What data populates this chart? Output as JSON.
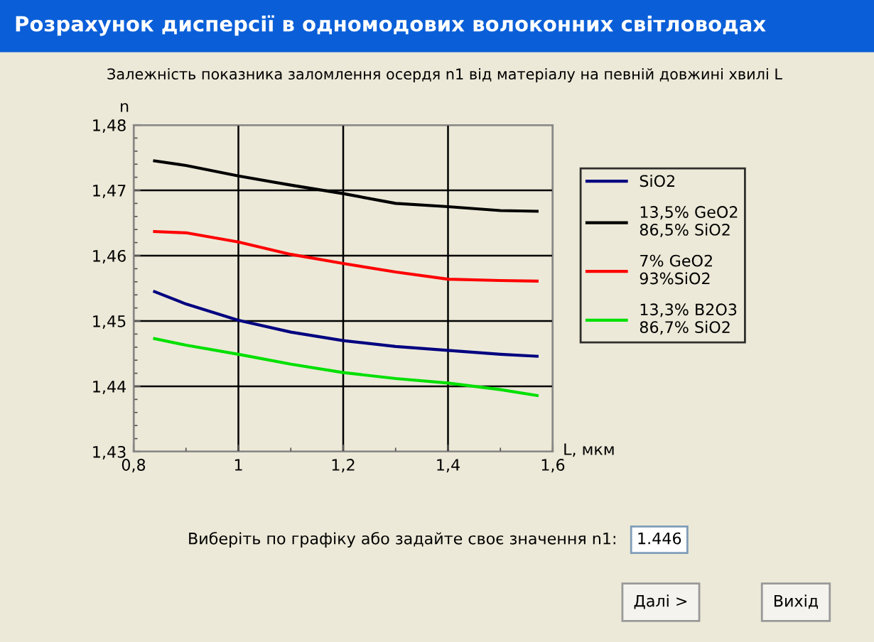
{
  "chart_data": {
    "type": "line",
    "title": "Розрахунок дисперсії в одномодових волоконних світловодах",
    "subtitle": "Залежність показника заломлення осердя n1 від матеріалу на певній довжині хвилі L",
    "xlabel": "L, мкм",
    "ylabel": "n",
    "x": [
      0.84,
      0.9,
      1.0,
      1.1,
      1.2,
      1.3,
      1.4,
      1.5,
      1.57
    ],
    "series": [
      {
        "name": "SiO2",
        "color": "#000080",
        "values": [
          1.4545,
          1.4526,
          1.4501,
          1.4483,
          1.447,
          1.4461,
          1.4455,
          1.4449,
          1.4446
        ]
      },
      {
        "name": "13,5% GeO2\n86,5% SiO2",
        "color": "#000000",
        "values": [
          1.4745,
          1.4738,
          1.4722,
          1.4708,
          1.4695,
          1.468,
          1.4675,
          1.4669,
          1.4668
        ]
      },
      {
        "name": "7% GeO2\n93%SiO2",
        "color": "#ff0000",
        "values": [
          1.4637,
          1.4635,
          1.4621,
          1.4602,
          1.4588,
          1.4575,
          1.4564,
          1.4562,
          1.4561
        ]
      },
      {
        "name": "13,3% B2O3\n86,7% SiO2",
        "color": "#00e000",
        "values": [
          1.4473,
          1.4463,
          1.4449,
          1.4434,
          1.4421,
          1.4412,
          1.4405,
          1.4395,
          1.4386
        ]
      }
    ],
    "xlim": [
      0.8,
      1.6
    ],
    "xticks": [
      {
        "value": 0.8,
        "label": "0,8"
      },
      1,
      {
        "value": 1.2,
        "label": "1,2"
      },
      {
        "value": 1.4,
        "label": "1,4"
      },
      {
        "value": 1.6,
        "label": "1,6"
      }
    ],
    "ylim": [
      1.43,
      1.48
    ],
    "yticks": [
      {
        "value": 1.43,
        "label": "1,43"
      },
      {
        "value": 1.44,
        "label": "1,44"
      },
      {
        "value": 1.45,
        "label": "1,45"
      },
      {
        "value": 1.46,
        "label": "1,46"
      },
      {
        "value": 1.47,
        "label": "1,47"
      },
      {
        "value": 1.48,
        "label": "1,48"
      }
    ],
    "grid": true,
    "legend": "right",
    "marker": "none",
    "line_style": "solid",
    "annotations": [
      "Виберіть по графіку або задайте своє значення n1:",
      "1.446",
      "Далі >",
      "Вихід"
    ]
  }
}
